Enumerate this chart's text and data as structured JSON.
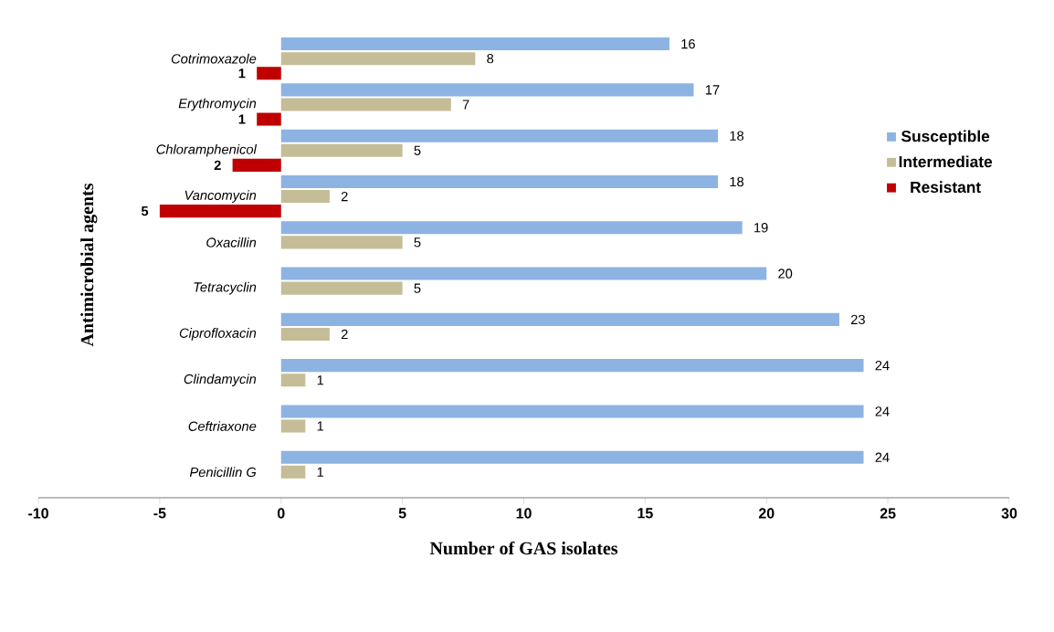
{
  "chart_data": {
    "type": "bar",
    "orientation": "horizontal",
    "xlabel": "Number of GAS isolates",
    "ylabel": "Antimicrobial agents",
    "categories": [
      "Cotrimoxazole",
      "Erythromycin",
      "Chloramphenicol",
      "Vancomycin",
      "Oxacillin",
      "Tetracyclin",
      "Ciprofloxacin",
      "Clindamycin",
      "Ceftriaxone",
      "Penicillin G"
    ],
    "series": [
      {
        "name": "Susceptible",
        "color": "#8db3e2",
        "values": [
          16,
          17,
          18,
          18,
          19,
          20,
          23,
          24,
          24,
          24
        ]
      },
      {
        "name": "Intermediate",
        "color": "#c4bd97",
        "values": [
          8,
          7,
          5,
          2,
          5,
          5,
          2,
          1,
          1,
          1
        ]
      },
      {
        "name": "Resistant",
        "color": "#c00000",
        "values": [
          1,
          1,
          2,
          5,
          null,
          null,
          null,
          null,
          null,
          null
        ],
        "base": [
          -1,
          -1,
          -2,
          -5,
          null,
          null,
          null,
          null,
          null,
          null
        ]
      }
    ],
    "data_labels": true,
    "xlim": [
      -10,
      30
    ],
    "xticks": [
      -10,
      -5,
      0,
      5,
      10,
      15,
      20,
      25,
      30
    ],
    "grid": false,
    "legend": "right"
  }
}
